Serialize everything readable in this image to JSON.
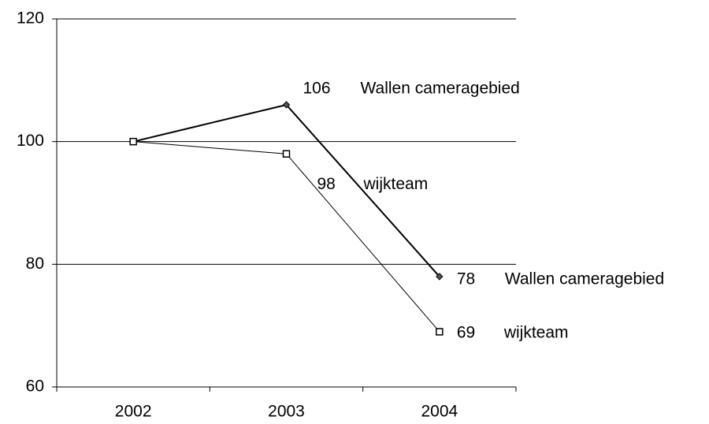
{
  "chart_data": {
    "type": "line",
    "categories": [
      "2002",
      "2003",
      "2004"
    ],
    "series": [
      {
        "name": "Wallen cameragebied",
        "color": "#000000",
        "values": [
          100,
          106,
          78
        ],
        "value_labels": [
          null,
          "106",
          "78"
        ]
      },
      {
        "name": "wijkteam",
        "color": "#000000",
        "values": [
          100,
          98,
          69
        ],
        "value_labels": [
          null,
          "98",
          "69"
        ]
      }
    ],
    "ylim": [
      60,
      120
    ],
    "yticks": [
      60,
      80,
      100,
      120
    ],
    "grid": true
  }
}
